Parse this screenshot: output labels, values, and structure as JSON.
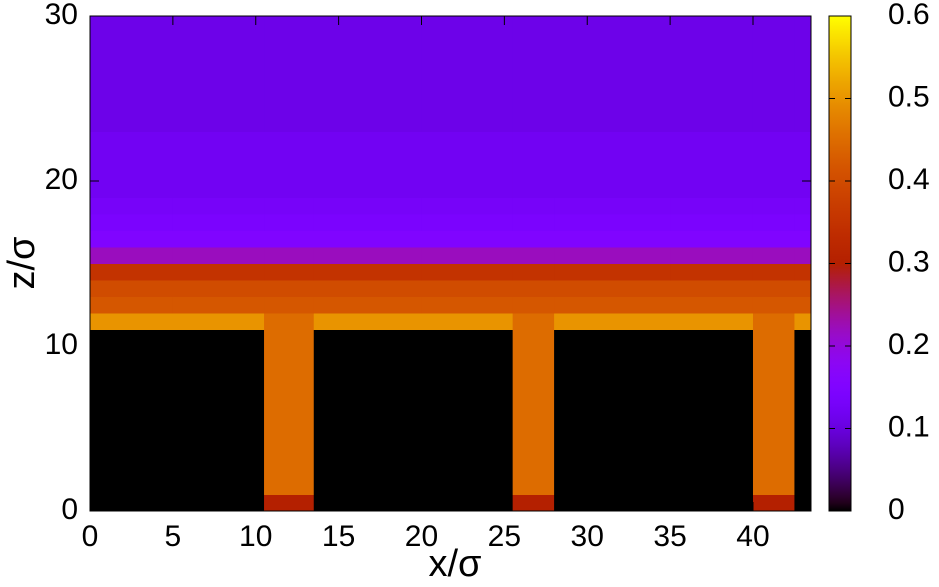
{
  "chart_data": {
    "type": "heatmap",
    "xlabel": "x/σ",
    "ylabel": "z/σ",
    "xbins": [
      0,
      5,
      10.5,
      13.5,
      20,
      25.5,
      28,
      35,
      40,
      42.5,
      43.5
    ],
    "ybins": [
      0,
      1,
      2,
      3,
      4,
      5,
      6,
      7,
      8,
      9,
      10,
      11,
      12,
      13,
      14,
      15,
      16,
      17,
      18,
      19,
      20,
      21,
      22,
      23,
      24,
      25,
      26,
      27,
      28,
      29,
      30
    ],
    "z": [
      [
        0,
        0,
        0.3,
        0,
        0,
        0.3,
        0,
        0,
        0.3,
        0
      ],
      [
        0,
        0,
        0.45,
        0,
        0,
        0.45,
        0,
        0,
        0.45,
        0
      ],
      [
        0,
        0,
        0.45,
        0,
        0,
        0.45,
        0,
        0,
        0.45,
        0
      ],
      [
        0,
        0,
        0.45,
        0,
        0,
        0.45,
        0,
        0,
        0.45,
        0
      ],
      [
        0,
        0,
        0.45,
        0,
        0,
        0.45,
        0,
        0,
        0.45,
        0
      ],
      [
        0,
        0,
        0.45,
        0,
        0,
        0.45,
        0,
        0,
        0.45,
        0
      ],
      [
        0,
        0,
        0.45,
        0,
        0,
        0.45,
        0,
        0,
        0.45,
        0
      ],
      [
        0,
        0,
        0.45,
        0,
        0,
        0.45,
        0,
        0,
        0.45,
        0
      ],
      [
        0,
        0,
        0.45,
        0,
        0,
        0.45,
        0,
        0,
        0.45,
        0
      ],
      [
        0,
        0,
        0.45,
        0,
        0,
        0.45,
        0,
        0,
        0.45,
        0
      ],
      [
        0,
        0,
        0.45,
        0,
        0,
        0.45,
        0,
        0,
        0.45,
        0
      ],
      [
        0.5,
        0.5,
        0.45,
        0.5,
        0.5,
        0.45,
        0.5,
        0.5,
        0.45,
        0.5
      ],
      [
        0.42,
        0.42,
        0.42,
        0.42,
        0.42,
        0.42,
        0.42,
        0.42,
        0.42,
        0.42
      ],
      [
        0.4,
        0.4,
        0.4,
        0.4,
        0.4,
        0.4,
        0.4,
        0.4,
        0.4,
        0.4
      ],
      [
        0.35,
        0.35,
        0.35,
        0.35,
        0.35,
        0.35,
        0.35,
        0.35,
        0.35,
        0.35
      ],
      [
        0.22,
        0.22,
        0.22,
        0.22,
        0.22,
        0.22,
        0.22,
        0.22,
        0.22,
        0.22
      ],
      [
        0.15,
        0.15,
        0.15,
        0.15,
        0.15,
        0.15,
        0.15,
        0.15,
        0.15,
        0.15
      ],
      [
        0.14,
        0.14,
        0.14,
        0.14,
        0.14,
        0.14,
        0.14,
        0.14,
        0.14,
        0.14
      ],
      [
        0.13,
        0.13,
        0.13,
        0.13,
        0.13,
        0.13,
        0.13,
        0.13,
        0.13,
        0.13
      ],
      [
        0.12,
        0.12,
        0.12,
        0.12,
        0.12,
        0.12,
        0.12,
        0.12,
        0.12,
        0.12
      ],
      [
        0.12,
        0.12,
        0.12,
        0.12,
        0.12,
        0.12,
        0.12,
        0.12,
        0.12,
        0.12
      ],
      [
        0.12,
        0.12,
        0.12,
        0.12,
        0.12,
        0.12,
        0.12,
        0.12,
        0.12,
        0.12
      ],
      [
        0.12,
        0.12,
        0.12,
        0.12,
        0.12,
        0.12,
        0.12,
        0.12,
        0.12,
        0.12
      ],
      [
        0.11,
        0.11,
        0.11,
        0.11,
        0.11,
        0.11,
        0.11,
        0.11,
        0.11,
        0.11
      ],
      [
        0.11,
        0.11,
        0.11,
        0.11,
        0.11,
        0.11,
        0.11,
        0.11,
        0.11,
        0.11
      ],
      [
        0.11,
        0.11,
        0.11,
        0.11,
        0.11,
        0.11,
        0.11,
        0.11,
        0.11,
        0.11
      ],
      [
        0.11,
        0.11,
        0.11,
        0.11,
        0.11,
        0.11,
        0.11,
        0.11,
        0.11,
        0.11
      ],
      [
        0.11,
        0.11,
        0.11,
        0.11,
        0.11,
        0.11,
        0.11,
        0.11,
        0.11,
        0.11
      ],
      [
        0.11,
        0.11,
        0.11,
        0.11,
        0.11,
        0.11,
        0.11,
        0.11,
        0.11,
        0.11
      ],
      [
        0.11,
        0.11,
        0.11,
        0.11,
        0.11,
        0.11,
        0.11,
        0.11,
        0.11,
        0.11
      ]
    ],
    "xlim": [
      0,
      43.5
    ],
    "xticks": [
      0,
      5,
      10,
      15,
      20,
      25,
      30,
      35,
      40
    ],
    "ylim": [
      0,
      30
    ],
    "yticks": [
      0,
      10,
      20,
      30
    ],
    "clim": [
      0,
      0.6
    ],
    "cticks": [
      0,
      0.1,
      0.2,
      0.3,
      0.4,
      0.5,
      0.6
    ],
    "colormap": "gnuplot"
  }
}
